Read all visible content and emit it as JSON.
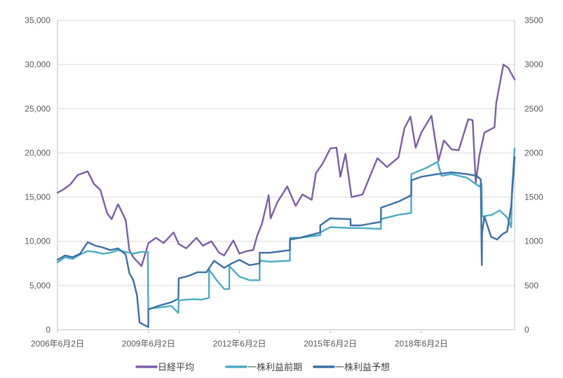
{
  "chart_data": {
    "type": "line",
    "title": "",
    "xlabel": "",
    "ylabel": "",
    "y2label": "",
    "x_ticks": [
      "2006年6月2日",
      "2009年6月2日",
      "2012年6月2日",
      "2015年6月2日",
      "2018年6月2日"
    ],
    "x_range": [
      "2006-06-02",
      "2021-06-30"
    ],
    "ylim": [
      0,
      35000
    ],
    "y_ticks": [
      "0",
      "5,000",
      "10,000",
      "15,000",
      "20,000",
      "25,000",
      "30,000",
      "35,000"
    ],
    "y2lim": [
      0,
      3500
    ],
    "y2_ticks": [
      "0",
      "500",
      "1000",
      "1500",
      "2000",
      "2500",
      "3000",
      "3500"
    ],
    "grid": true,
    "legend_position": "bottom",
    "series": [
      {
        "name": "日経平均",
        "axis": "left",
        "color": "#7b5ea7",
        "points": [
          [
            "2006-06-02",
            15500
          ],
          [
            "2006-08-01",
            15800
          ],
          [
            "2006-11-01",
            16400
          ],
          [
            "2007-02-01",
            17500
          ],
          [
            "2007-06-01",
            17900
          ],
          [
            "2007-08-15",
            16500
          ],
          [
            "2007-11-01",
            15800
          ],
          [
            "2008-01-20",
            13200
          ],
          [
            "2008-03-15",
            12500
          ],
          [
            "2008-06-01",
            14200
          ],
          [
            "2008-09-01",
            12400
          ],
          [
            "2008-10-15",
            9000
          ],
          [
            "2008-12-01",
            8200
          ],
          [
            "2009-03-10",
            7200
          ],
          [
            "2009-06-02",
            9800
          ],
          [
            "2009-09-01",
            10400
          ],
          [
            "2009-12-01",
            9800
          ],
          [
            "2010-04-01",
            11000
          ],
          [
            "2010-06-01",
            9700
          ],
          [
            "2010-09-01",
            9200
          ],
          [
            "2011-01-01",
            10400
          ],
          [
            "2011-03-20",
            9500
          ],
          [
            "2011-07-01",
            10000
          ],
          [
            "2011-10-01",
            8700
          ],
          [
            "2011-12-01",
            8400
          ],
          [
            "2012-03-20",
            10100
          ],
          [
            "2012-06-02",
            8600
          ],
          [
            "2012-09-01",
            8900
          ],
          [
            "2012-11-15",
            9000
          ],
          [
            "2013-01-01",
            10600
          ],
          [
            "2013-03-01",
            12000
          ],
          [
            "2013-05-20",
            15200
          ],
          [
            "2013-06-13",
            12600
          ],
          [
            "2013-09-01",
            14400
          ],
          [
            "2013-12-30",
            16200
          ],
          [
            "2014-04-10",
            14000
          ],
          [
            "2014-07-01",
            15300
          ],
          [
            "2014-10-20",
            14700
          ],
          [
            "2014-12-10",
            17700
          ],
          [
            "2015-03-01",
            18800
          ],
          [
            "2015-06-02",
            20500
          ],
          [
            "2015-08-15",
            20600
          ],
          [
            "2015-09-30",
            17300
          ],
          [
            "2015-12-01",
            19900
          ],
          [
            "2016-02-12",
            15000
          ],
          [
            "2016-06-24",
            15300
          ],
          [
            "2016-09-01",
            16900
          ],
          [
            "2016-12-20",
            19400
          ],
          [
            "2017-04-15",
            18400
          ],
          [
            "2017-09-01",
            19500
          ],
          [
            "2017-11-10",
            22800
          ],
          [
            "2018-01-23",
            24100
          ],
          [
            "2018-03-25",
            20600
          ],
          [
            "2018-06-02",
            22300
          ],
          [
            "2018-10-02",
            24200
          ],
          [
            "2018-12-25",
            19100
          ],
          [
            "2019-03-01",
            21400
          ],
          [
            "2019-06-03",
            20400
          ],
          [
            "2019-08-26",
            20300
          ],
          [
            "2019-12-20",
            23800
          ],
          [
            "2020-02-10",
            23700
          ],
          [
            "2020-03-19",
            16600
          ],
          [
            "2020-05-01",
            19700
          ],
          [
            "2020-07-01",
            22300
          ],
          [
            "2020-10-31",
            22900
          ],
          [
            "2020-11-20",
            25600
          ],
          [
            "2021-02-15",
            30000
          ],
          [
            "2021-04-15",
            29600
          ],
          [
            "2021-06-30",
            28300
          ]
        ]
      },
      {
        "name": "一株利益前期",
        "axis": "right",
        "color": "#4bacc6",
        "points": [
          [
            "2006-06-02",
            760
          ],
          [
            "2006-09-01",
            820
          ],
          [
            "2006-12-01",
            800
          ],
          [
            "2007-03-01",
            850
          ],
          [
            "2007-06-01",
            890
          ],
          [
            "2007-09-01",
            880
          ],
          [
            "2007-12-01",
            860
          ],
          [
            "2008-03-01",
            870
          ],
          [
            "2008-06-01",
            900
          ],
          [
            "2008-09-01",
            880
          ],
          [
            "2008-12-01",
            860
          ],
          [
            "2009-03-01",
            880
          ],
          [
            "2009-05-25",
            880
          ],
          [
            "2009-05-31",
            230
          ],
          [
            "2009-07-01",
            240
          ],
          [
            "2009-10-01",
            250
          ],
          [
            "2009-12-31",
            260
          ],
          [
            "2010-03-01",
            270
          ],
          [
            "2010-05-27",
            190
          ],
          [
            "2010-06-02",
            330
          ],
          [
            "2010-09-01",
            340
          ],
          [
            "2010-12-01",
            345
          ],
          [
            "2011-03-01",
            340
          ],
          [
            "2011-06-01",
            360
          ],
          [
            "2011-06-02",
            680
          ],
          [
            "2011-09-01",
            560
          ],
          [
            "2011-12-01",
            460
          ],
          [
            "2012-01-31",
            460
          ],
          [
            "2012-02-01",
            720
          ],
          [
            "2012-06-02",
            600
          ],
          [
            "2012-10-01",
            560
          ],
          [
            "2013-01-31",
            560
          ],
          [
            "2013-02-01",
            780
          ],
          [
            "2013-06-01",
            770
          ],
          [
            "2014-01-31",
            780
          ],
          [
            "2014-02-01",
            1040
          ],
          [
            "2014-06-01",
            1040
          ],
          [
            "2015-01-31",
            1070
          ],
          [
            "2015-02-01",
            1100
          ],
          [
            "2015-06-01",
            1160
          ],
          [
            "2016-01-31",
            1150
          ],
          [
            "2016-02-01",
            1150
          ],
          [
            "2016-06-01",
            1150
          ],
          [
            "2017-01-31",
            1140
          ],
          [
            "2017-02-01",
            1250
          ],
          [
            "2017-09-01",
            1300
          ],
          [
            "2018-01-31",
            1320
          ],
          [
            "2018-02-01",
            1760
          ],
          [
            "2018-08-01",
            1830
          ],
          [
            "2018-12-15",
            1900
          ],
          [
            "2019-01-31",
            1740
          ],
          [
            "2019-06-01",
            1760
          ],
          [
            "2019-12-01",
            1720
          ],
          [
            "2020-05-01",
            1620
          ],
          [
            "2020-05-28",
            1650
          ],
          [
            "2020-06-02",
            1280
          ],
          [
            "2020-10-01",
            1300
          ],
          [
            "2021-01-01",
            1350
          ],
          [
            "2021-04-01",
            1270
          ],
          [
            "2021-05-20",
            1160
          ],
          [
            "2021-05-29",
            1580
          ],
          [
            "2021-06-30",
            2050
          ]
        ]
      },
      {
        "name": "一株利益予想",
        "axis": "right",
        "color": "#3a6fa8",
        "points": [
          [
            "2006-06-02",
            790
          ],
          [
            "2006-09-01",
            840
          ],
          [
            "2006-12-01",
            820
          ],
          [
            "2007-03-01",
            860
          ],
          [
            "2007-06-01",
            990
          ],
          [
            "2007-09-01",
            950
          ],
          [
            "2007-12-01",
            930
          ],
          [
            "2008-03-01",
            900
          ],
          [
            "2008-06-01",
            920
          ],
          [
            "2008-09-01",
            850
          ],
          [
            "2008-10-15",
            640
          ],
          [
            "2008-12-01",
            560
          ],
          [
            "2009-01-15",
            390
          ],
          [
            "2009-02-15",
            80
          ],
          [
            "2009-05-31",
            30
          ],
          [
            "2009-06-01",
            230
          ],
          [
            "2009-10-01",
            270
          ],
          [
            "2010-03-01",
            310
          ],
          [
            "2010-05-28",
            350
          ],
          [
            "2010-06-01",
            580
          ],
          [
            "2010-10-01",
            610
          ],
          [
            "2011-01-15",
            650
          ],
          [
            "2011-05-01",
            650
          ],
          [
            "2011-08-01",
            780
          ],
          [
            "2011-12-01",
            700
          ],
          [
            "2012-03-01",
            750
          ],
          [
            "2012-06-02",
            790
          ],
          [
            "2012-10-01",
            730
          ],
          [
            "2013-01-31",
            750
          ],
          [
            "2013-02-01",
            870
          ],
          [
            "2013-06-01",
            870
          ],
          [
            "2014-01-31",
            900
          ],
          [
            "2014-02-01",
            1020
          ],
          [
            "2014-06-01",
            1040
          ],
          [
            "2015-01-31",
            1100
          ],
          [
            "2015-02-01",
            1180
          ],
          [
            "2015-06-01",
            1260
          ],
          [
            "2016-01-31",
            1250
          ],
          [
            "2016-02-01",
            1180
          ],
          [
            "2016-06-01",
            1180
          ],
          [
            "2017-01-31",
            1220
          ],
          [
            "2017-02-01",
            1380
          ],
          [
            "2017-09-01",
            1450
          ],
          [
            "2018-01-31",
            1520
          ],
          [
            "2018-02-01",
            1690
          ],
          [
            "2018-06-02",
            1730
          ],
          [
            "2018-12-15",
            1760
          ],
          [
            "2019-06-01",
            1780
          ],
          [
            "2019-12-01",
            1760
          ],
          [
            "2020-04-01",
            1740
          ],
          [
            "2020-05-18",
            1700
          ],
          [
            "2020-05-31",
            730
          ],
          [
            "2020-06-03",
            1100
          ],
          [
            "2020-07-01",
            1280
          ],
          [
            "2020-09-20",
            1050
          ],
          [
            "2020-12-01",
            1020
          ],
          [
            "2021-02-01",
            1080
          ],
          [
            "2021-04-01",
            1110
          ],
          [
            "2021-05-20",
            1400
          ],
          [
            "2021-06-30",
            1950
          ]
        ]
      }
    ]
  }
}
